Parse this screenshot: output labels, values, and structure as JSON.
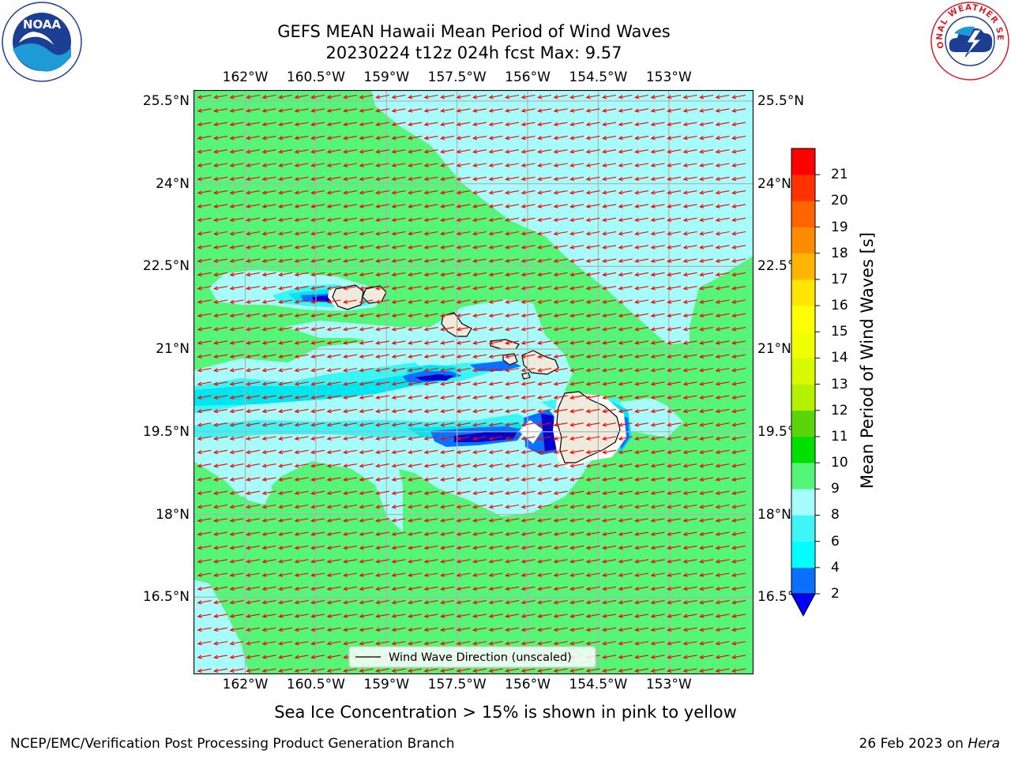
{
  "header": {
    "title_line1": "GEFS MEAN Hawaii Mean Period of Wind Waves",
    "title_line2": "20230224 t12z 024h fcst   Max: 9.57"
  },
  "logos": {
    "left": {
      "text": "NOAA",
      "ring_text": "NATIONAL OCEANIC AND ATMOSPHERIC ADMINISTRATION · U.S. DEPARTMENT OF COMMERCE"
    },
    "right": {
      "ring_text": "NATIONAL WEATHER SERVICE"
    }
  },
  "colors": {
    "field_green": "#55f57a",
    "field_lightcyan": "#a6fbfb",
    "field_cyan": "#3cf4f4",
    "field_aqua": "#00e6f0",
    "field_blue": "#0a70ff",
    "field_darkblue": "#0000cd",
    "land": "#eeebdc",
    "vector": "#ff0000"
  },
  "chart_data": {
    "type": "heatmap",
    "title": "GEFS MEAN Hawaii Mean Period of Wind Waves",
    "subtitle": "20230224 t12z 024h fcst   Max: 9.57",
    "max_value": 9.57,
    "x_range": [
      -163.1,
      -151.2
    ],
    "y_range": [
      15.1,
      25.7
    ],
    "x_ticks": [
      "162°W",
      "160.5°W",
      "159°W",
      "157.5°W",
      "156°W",
      "154.5°W",
      "153°W"
    ],
    "y_ticks": [
      "25.5°N",
      "24°N",
      "22.5°N",
      "21°N",
      "19.5°N",
      "18°N",
      "16.5°N"
    ],
    "grid": true,
    "legend": {
      "position": "bottom-center",
      "entries": [
        "Wind Wave Direction (unscaled)"
      ]
    },
    "colorbar": {
      "label": "Mean Period of Wind Waves [s]",
      "ticks": [
        "2",
        "4",
        "6",
        "8",
        "9",
        "10",
        "11",
        "12",
        "13",
        "14",
        "15",
        "16",
        "17",
        "18",
        "19",
        "20",
        "21"
      ],
      "bins": [
        {
          "from": 2,
          "to": 4,
          "color": "#0a70ff"
        },
        {
          "from": 4,
          "to": 6,
          "color": "#00ffff"
        },
        {
          "from": 6,
          "to": 8,
          "color": "#40f5f5"
        },
        {
          "from": 8,
          "to": 9,
          "color": "#a6fbfb"
        },
        {
          "from": 9,
          "to": 10,
          "color": "#55f57a"
        },
        {
          "from": 10,
          "to": 11,
          "color": "#00e000"
        },
        {
          "from": 11,
          "to": 12,
          "color": "#5ad50a"
        },
        {
          "from": 12,
          "to": 13,
          "color": "#b4f000"
        },
        {
          "from": 13,
          "to": 14,
          "color": "#d7fa00"
        },
        {
          "from": 14,
          "to": 15,
          "color": "#f0ff00"
        },
        {
          "from": 15,
          "to": 16,
          "color": "#ffff00"
        },
        {
          "from": 16,
          "to": 17,
          "color": "#ffe600"
        },
        {
          "from": 17,
          "to": 18,
          "color": "#ffb400"
        },
        {
          "from": 18,
          "to": 19,
          "color": "#ff8c00"
        },
        {
          "from": 19,
          "to": 20,
          "color": "#ff6400"
        },
        {
          "from": 20,
          "to": 21,
          "color": "#ff3200"
        },
        {
          "from": 21,
          "to": 22,
          "color": "#ff0000"
        }
      ],
      "under_color": "#0000ff"
    }
  },
  "note": "Sea Ice Concentration > 15% is shown in pink to yellow",
  "footer": {
    "credit": "NCEP/EMC/Verification Post Processing Product Generation Branch",
    "date": "26 Feb 2023 on ",
    "machine": "Hera"
  }
}
